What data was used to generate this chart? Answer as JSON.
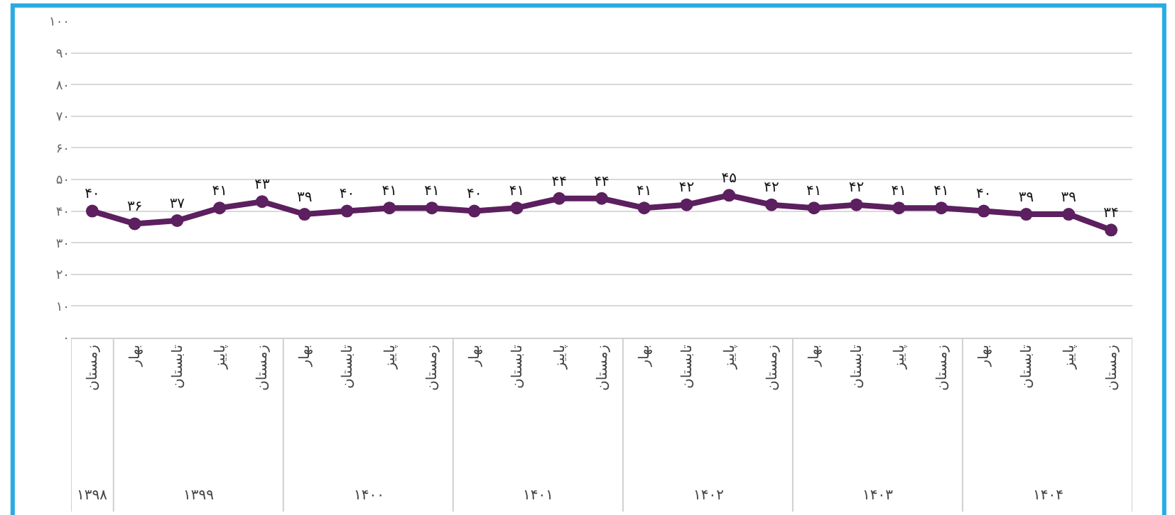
{
  "chart_data": {
    "type": "line",
    "categories": [
      [
        "۱۳۹۸",
        "زمستان"
      ],
      [
        "۱۳۹۹",
        "بهار"
      ],
      [
        null,
        "تابستان"
      ],
      [
        null,
        "پاییز"
      ],
      [
        null,
        "زمستان"
      ],
      [
        "۱۴۰۰",
        "بهار"
      ],
      [
        null,
        "تابستان"
      ],
      [
        null,
        "پاییز"
      ],
      [
        null,
        "زمستان"
      ],
      [
        "۱۴۰۱",
        "بهار"
      ],
      [
        null,
        "تابستان"
      ],
      [
        null,
        "پاییز"
      ],
      [
        null,
        "زمستان"
      ],
      [
        "۱۴۰۲",
        "بهار"
      ],
      [
        null,
        "تابستان"
      ],
      [
        null,
        "پاییز"
      ],
      [
        null,
        "زمستان"
      ],
      [
        "۱۴۰۳",
        "بهار"
      ],
      [
        null,
        "تابستان"
      ],
      [
        null,
        "پاییز"
      ],
      [
        null,
        "زمستان"
      ],
      [
        "۱۴۰۴",
        "بهار"
      ],
      [
        null,
        "تابستان"
      ],
      [
        null,
        "پاییز"
      ],
      [
        null,
        "زمستان"
      ]
    ],
    "series": [
      {
        "color": "#5c1f5f",
        "values": [
          40,
          36,
          37,
          41,
          43,
          39,
          40,
          41,
          41,
          40,
          41,
          44,
          44,
          41,
          42,
          45,
          42,
          41,
          42,
          41,
          41,
          40,
          39,
          39,
          34
        ],
        "value_labels": [
          "۴۰",
          "۳۶",
          "۳۷",
          "۴۱",
          "۴۳",
          "۳۹",
          "۴۰",
          "۴۱",
          "۴۱",
          "۴۰",
          "۴۱",
          "۴۴",
          "۴۴",
          "۴۱",
          "۴۲",
          "۴۵",
          "۴۲",
          "۴۱",
          "۴۲",
          "۴۱",
          "۴۱",
          "۴۰",
          "۳۹",
          "۳۹",
          "۳۴"
        ]
      }
    ],
    "ylim": [
      0,
      100
    ],
    "yticks": [
      {
        "value": 0,
        "label": "۰"
      },
      {
        "value": 10,
        "label": "۱۰"
      },
      {
        "value": 20,
        "label": "۲۰"
      },
      {
        "value": 30,
        "label": "۳۰"
      },
      {
        "value": 40,
        "label": "۴۰"
      },
      {
        "value": 50,
        "label": "۵۰"
      },
      {
        "value": 60,
        "label": "۶۰"
      },
      {
        "value": 70,
        "label": "۷۰"
      },
      {
        "value": 80,
        "label": "۸۰"
      },
      {
        "value": 90,
        "label": "۹۰"
      },
      {
        "value": 100,
        "label": "۱۰۰"
      }
    ],
    "grid": "y",
    "legend": false,
    "marker": "circle",
    "line_style": "solid"
  }
}
